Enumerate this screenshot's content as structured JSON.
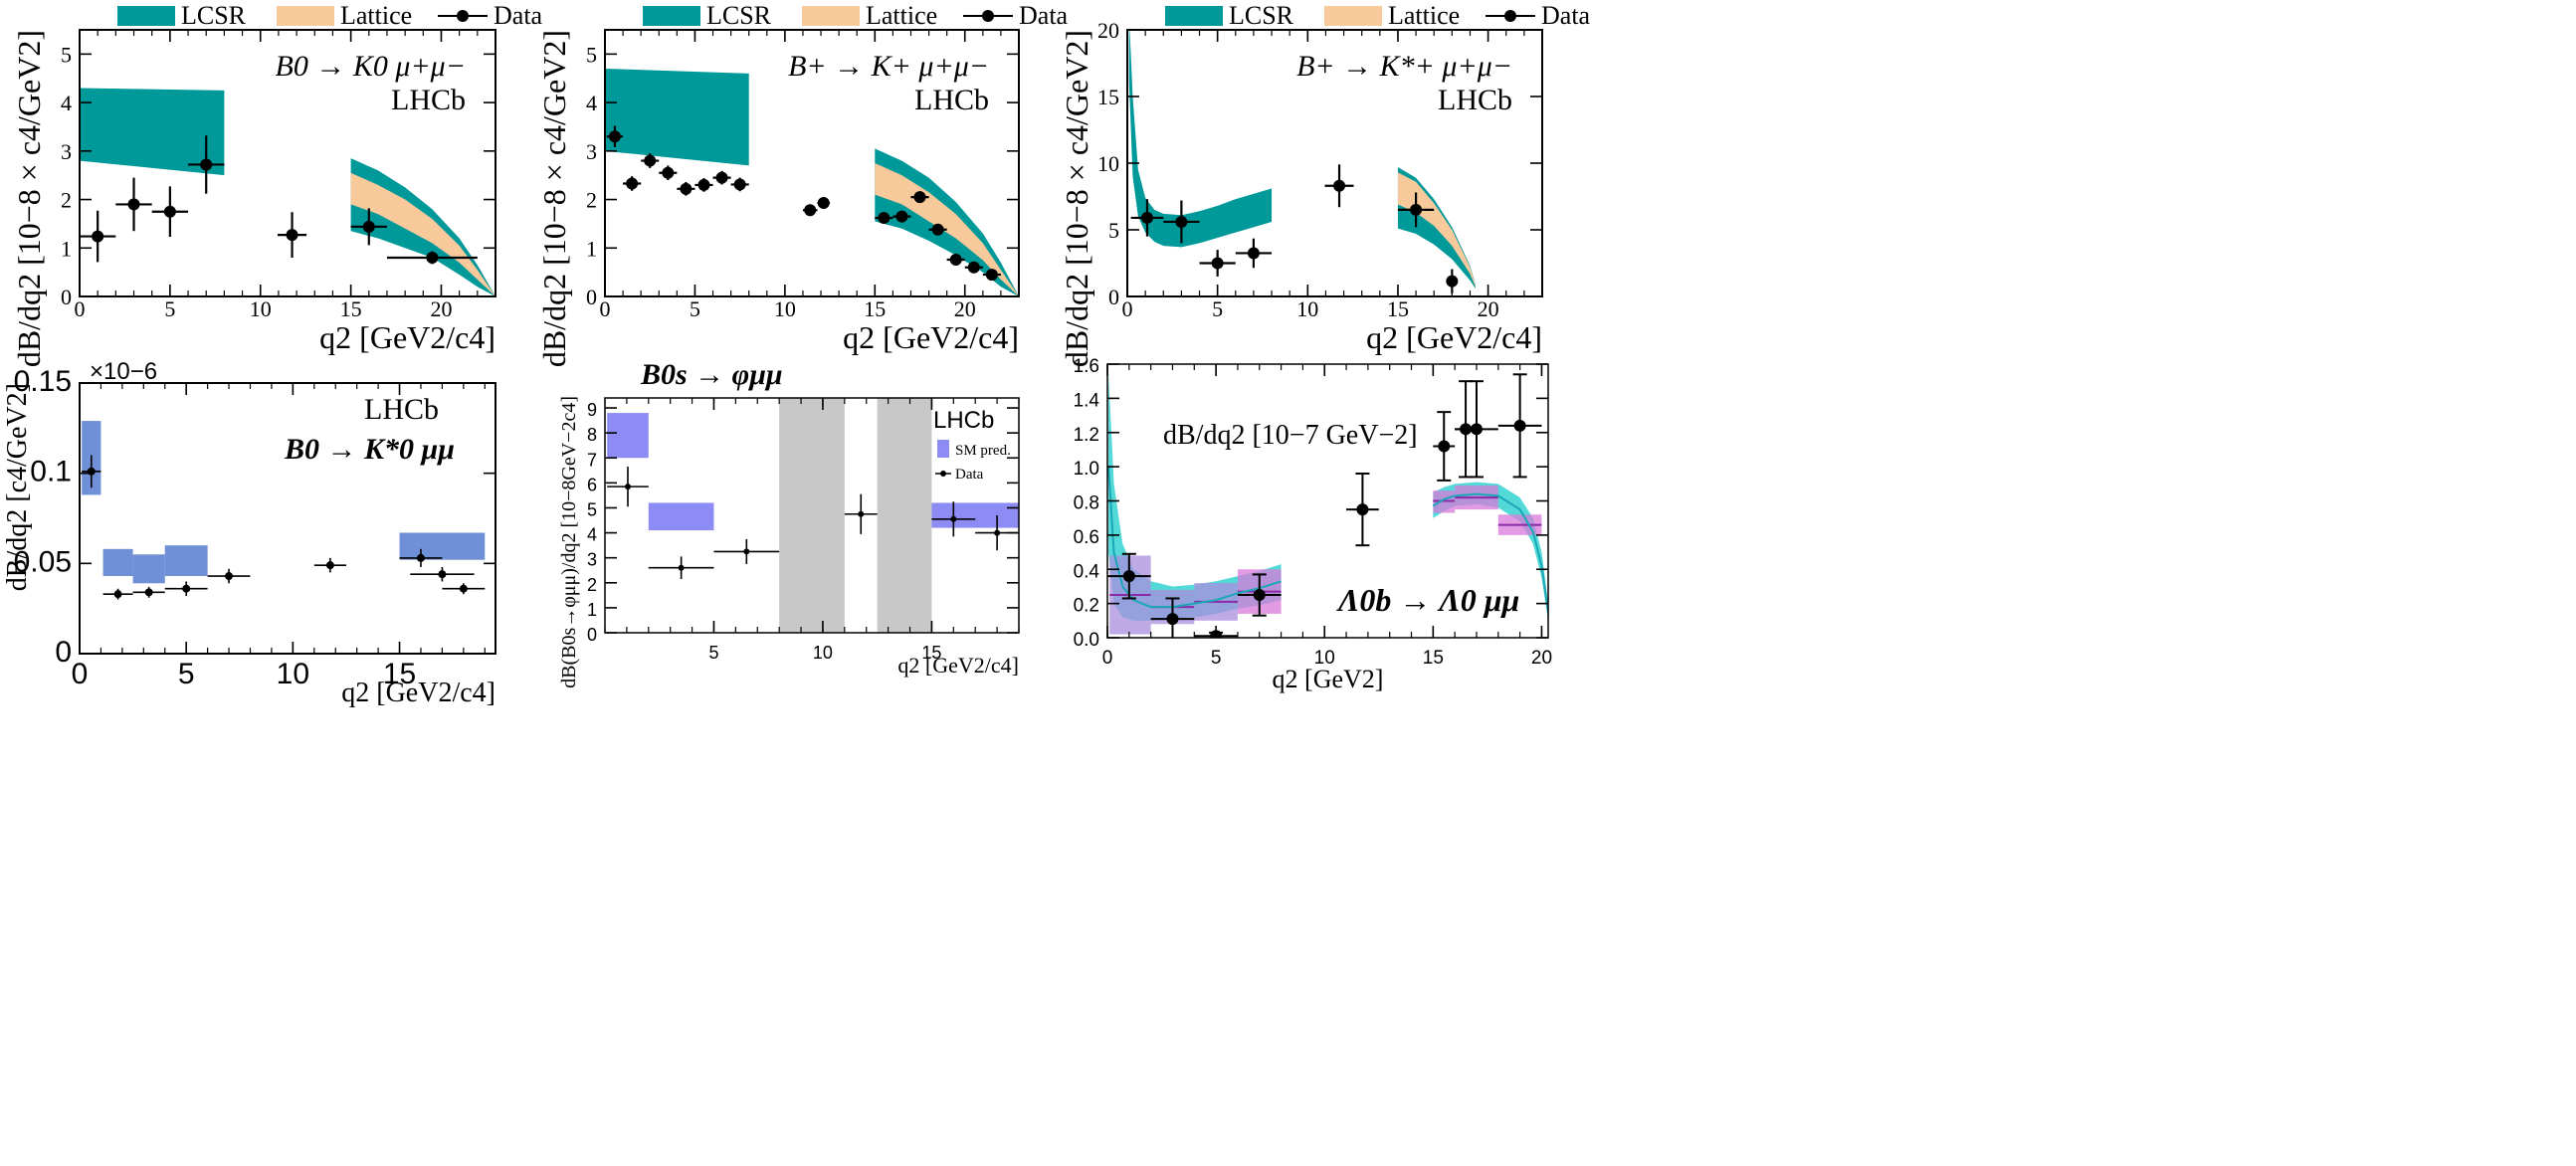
{
  "colors": {
    "lcsr": "#00999a",
    "lattice": "#f7c99b",
    "data": "#000000",
    "sm_pred_blue": "#6f8fd6",
    "sm_pred_violet": "#8c8cf4",
    "shade": "#c8c8c8",
    "lambda_cyan": "#54d9d9",
    "lambda_purple": "#a98ddc",
    "lambda_magenta": "#d87ad8",
    "lambda_line": "#8a2aa6"
  },
  "chart_data": [
    {
      "id": "p1",
      "type": "scatter",
      "legend": {
        "lcsr": "LCSR",
        "lattice": "Lattice",
        "data": "Data",
        "position": "top"
      },
      "title": "B0 → K0 μ+μ−",
      "experiment": "LHCb",
      "xlabel": "q2 [GeV2/c4]",
      "ylabel": "dB/dq2 [10−8 × c4/GeV2]",
      "xlim": [
        0,
        23
      ],
      "ylim": [
        0,
        5.5
      ],
      "xticks": [
        "0",
        "5",
        "10",
        "15",
        "20"
      ],
      "yticks": [
        "0",
        "1",
        "2",
        "3",
        "4",
        "5"
      ],
      "bands": {
        "lcsr": [
          {
            "x": [
              0,
              8
            ],
            "lo": [
              2.8,
              2.5
            ],
            "hi": [
              4.3,
              4.25
            ]
          },
          {
            "x": [
              15,
              16.5,
              18,
              19.5,
              21,
              22,
              23
            ],
            "lo": [
              1.35,
              1.2,
              1.0,
              0.8,
              0.45,
              0.2,
              0.0
            ],
            "hi": [
              2.85,
              2.6,
              2.25,
              1.8,
              1.2,
              0.65,
              0.0
            ]
          }
        ],
        "lattice": [
          {
            "x": [
              15,
              16.5,
              18,
              19.5,
              21,
              22,
              23
            ],
            "lo": [
              1.9,
              1.7,
              1.4,
              1.1,
              0.7,
              0.35,
              0.0
            ],
            "hi": [
              2.55,
              2.3,
              2.0,
              1.6,
              1.05,
              0.55,
              0.0
            ]
          }
        ]
      },
      "points": [
        {
          "x": 1.0,
          "y": 1.24,
          "xerr": 1.0,
          "yerr": 0.53
        },
        {
          "x": 3.0,
          "y": 1.9,
          "xerr": 1.0,
          "yerr": 0.55
        },
        {
          "x": 5.0,
          "y": 1.75,
          "xerr": 1.0,
          "yerr": 0.52
        },
        {
          "x": 7.0,
          "y": 2.72,
          "xerr": 1.0,
          "yerr": 0.6
        },
        {
          "x": 11.75,
          "y": 1.27,
          "xerr": 0.8,
          "yerr": 0.47
        },
        {
          "x": 16.0,
          "y": 1.44,
          "xerr": 1.0,
          "yerr": 0.38
        },
        {
          "x": 19.5,
          "y": 0.8,
          "xerr": 2.5,
          "yerr": 0.13
        }
      ]
    },
    {
      "id": "p2",
      "type": "scatter",
      "legend": {
        "lcsr": "LCSR",
        "lattice": "Lattice",
        "data": "Data",
        "position": "top"
      },
      "title": "B+ → K+ μ+μ−",
      "experiment": "LHCb",
      "xlabel": "q2 [GeV2/c4]",
      "ylabel": "dB/dq2 [10−8 × c4/GeV2]",
      "xlim": [
        0,
        23
      ],
      "ylim": [
        0,
        5.5
      ],
      "xticks": [
        "0",
        "5",
        "10",
        "15",
        "20"
      ],
      "yticks": [
        "0",
        "1",
        "2",
        "3",
        "4",
        "5"
      ],
      "bands": {
        "lcsr": [
          {
            "x": [
              0,
              8
            ],
            "lo": [
              3.0,
              2.7
            ],
            "hi": [
              4.7,
              4.6
            ]
          },
          {
            "x": [
              15,
              16.5,
              18,
              19.5,
              21,
              22,
              23
            ],
            "lo": [
              1.55,
              1.4,
              1.15,
              0.85,
              0.5,
              0.2,
              0.0
            ],
            "hi": [
              3.05,
              2.8,
              2.45,
              1.95,
              1.3,
              0.7,
              0.0
            ]
          }
        ],
        "lattice": [
          {
            "x": [
              15,
              16.5,
              18,
              19.5,
              21,
              22,
              23
            ],
            "lo": [
              2.1,
              1.9,
              1.55,
              1.2,
              0.75,
              0.35,
              0.0
            ],
            "hi": [
              2.75,
              2.5,
              2.15,
              1.7,
              1.1,
              0.55,
              0.0
            ]
          }
        ]
      },
      "points": [
        {
          "x": 0.55,
          "y": 3.3,
          "xerr": 0.45,
          "yerr": 0.22
        },
        {
          "x": 1.5,
          "y": 2.33,
          "xerr": 0.5,
          "yerr": 0.15
        },
        {
          "x": 2.5,
          "y": 2.8,
          "xerr": 0.5,
          "yerr": 0.15
        },
        {
          "x": 3.5,
          "y": 2.55,
          "xerr": 0.5,
          "yerr": 0.15
        },
        {
          "x": 4.5,
          "y": 2.22,
          "xerr": 0.5,
          "yerr": 0.14
        },
        {
          "x": 5.5,
          "y": 2.3,
          "xerr": 0.5,
          "yerr": 0.14
        },
        {
          "x": 6.5,
          "y": 2.45,
          "xerr": 0.5,
          "yerr": 0.14
        },
        {
          "x": 7.5,
          "y": 2.31,
          "xerr": 0.5,
          "yerr": 0.14
        },
        {
          "x": 11.4,
          "y": 1.78,
          "xerr": 0.4,
          "yerr": 0.12
        },
        {
          "x": 12.15,
          "y": 1.93,
          "xerr": 0.35,
          "yerr": 0.12
        },
        {
          "x": 15.5,
          "y": 1.62,
          "xerr": 0.5,
          "yerr": 0.1
        },
        {
          "x": 16.5,
          "y": 1.65,
          "xerr": 0.5,
          "yerr": 0.1
        },
        {
          "x": 17.5,
          "y": 2.05,
          "xerr": 0.5,
          "yerr": 0.12
        },
        {
          "x": 18.5,
          "y": 1.38,
          "xerr": 0.5,
          "yerr": 0.09
        },
        {
          "x": 19.5,
          "y": 0.76,
          "xerr": 0.5,
          "yerr": 0.06
        },
        {
          "x": 20.5,
          "y": 0.6,
          "xerr": 0.5,
          "yerr": 0.05
        },
        {
          "x": 21.5,
          "y": 0.45,
          "xerr": 0.5,
          "yerr": 0.04
        }
      ]
    },
    {
      "id": "p3",
      "type": "scatter",
      "legend": {
        "lcsr": "LCSR",
        "lattice": "Lattice",
        "data": "Data",
        "position": "top"
      },
      "title": "B+ → K*+ μ+μ−",
      "experiment": "LHCb",
      "xlabel": "q2 [GeV2/c4]",
      "ylabel": "dB/dq2 [10−8 × c4/GeV2]",
      "xlim": [
        0,
        23
      ],
      "ylim": [
        0,
        20
      ],
      "xticks": [
        "0",
        "5",
        "10",
        "15",
        "20"
      ],
      "yticks": [
        "0",
        "5",
        "10",
        "15",
        "20"
      ],
      "bands": {
        "lcsr": [
          {
            "x": [
              0.1,
              0.3,
              0.6,
              1.0,
              1.5,
              2.0,
              3.0,
              4.0,
              5.0,
              6.0,
              7.0,
              8.0
            ],
            "lo": [
              16.0,
              9.0,
              6.0,
              4.8,
              4.1,
              3.8,
              3.7,
              4.0,
              4.4,
              4.8,
              5.2,
              5.6
            ],
            "hi": [
              21.0,
              15.0,
              9.5,
              7.4,
              6.5,
              6.2,
              6.1,
              6.4,
              6.8,
              7.3,
              7.7,
              8.1
            ]
          },
          {
            "x": [
              15,
              16,
              17,
              18,
              19,
              19.3
            ],
            "lo": [
              5.1,
              4.7,
              3.9,
              2.8,
              1.2,
              0.6
            ],
            "hi": [
              9.7,
              8.9,
              7.3,
              5.2,
              2.3,
              0.9
            ]
          }
        ],
        "lattice": [
          {
            "x": [
              15,
              16,
              17,
              18,
              19,
              19.3
            ],
            "lo": [
              6.9,
              6.3,
              5.3,
              3.8,
              1.7,
              0.7
            ],
            "hi": [
              9.3,
              8.6,
              7.0,
              5.0,
              2.2,
              0.85
            ]
          }
        ]
      },
      "points": [
        {
          "x": 1.1,
          "y": 5.9,
          "xerr": 0.9,
          "yerr": 1.4
        },
        {
          "x": 3.0,
          "y": 5.6,
          "xerr": 1.0,
          "yerr": 1.6
        },
        {
          "x": 5.0,
          "y": 2.5,
          "xerr": 1.0,
          "yerr": 1.0
        },
        {
          "x": 7.0,
          "y": 3.25,
          "xerr": 1.0,
          "yerr": 1.1
        },
        {
          "x": 11.75,
          "y": 8.3,
          "xerr": 0.8,
          "yerr": 1.6
        },
        {
          "x": 16.0,
          "y": 6.5,
          "xerr": 1.0,
          "yerr": 1.3
        },
        {
          "x": 18.0,
          "y": 1.15,
          "xerr": 0.0,
          "yerr": 0.9
        }
      ]
    },
    {
      "id": "p4",
      "type": "scatter",
      "title": "B0 → K*0 μμ",
      "experiment": "LHCb",
      "offset_label": "×10−6",
      "xlabel": "q2 [GeV2/c4]",
      "ylabel": "dB/dq2 [c4/GeV2]",
      "xlim": [
        0,
        19.5
      ],
      "ylim": [
        0,
        0.15
      ],
      "xticks": [
        "0",
        "5",
        "10",
        "15"
      ],
      "yticks": [
        "0",
        "0.05",
        "0.1",
        "0.15"
      ],
      "boxes": [
        {
          "x0": 0.1,
          "x1": 1.0,
          "y0": 0.088,
          "y1": 0.129
        },
        {
          "x0": 1.1,
          "x1": 2.5,
          "y0": 0.043,
          "y1": 0.058
        },
        {
          "x0": 2.5,
          "x1": 4.0,
          "y0": 0.039,
          "y1": 0.055
        },
        {
          "x0": 4.0,
          "x1": 6.0,
          "y0": 0.043,
          "y1": 0.06
        },
        {
          "x0": 15.0,
          "x1": 19.0,
          "y0": 0.052,
          "y1": 0.067
        }
      ],
      "points": [
        {
          "x": 0.55,
          "y": 0.101,
          "xerr": 0.45,
          "yerr": 0.009
        },
        {
          "x": 1.8,
          "y": 0.033,
          "xerr": 0.7,
          "yerr": 0.003
        },
        {
          "x": 3.25,
          "y": 0.034,
          "xerr": 0.75,
          "yerr": 0.003
        },
        {
          "x": 5.0,
          "y": 0.036,
          "xerr": 1.0,
          "yerr": 0.004
        },
        {
          "x": 7.0,
          "y": 0.043,
          "xerr": 1.0,
          "yerr": 0.004
        },
        {
          "x": 11.75,
          "y": 0.049,
          "xerr": 0.75,
          "yerr": 0.004
        },
        {
          "x": 16.0,
          "y": 0.053,
          "xerr": 1.0,
          "yerr": 0.005
        },
        {
          "x": 17.0,
          "y": 0.044,
          "xerr": 1.5,
          "yerr": 0.004
        },
        {
          "x": 18.0,
          "y": 0.036,
          "xerr": 1.0,
          "yerr": 0.003
        }
      ]
    },
    {
      "id": "p5",
      "type": "scatter",
      "title": "B0s → φμμ",
      "experiment": "LHCb",
      "legend": {
        "sm": "SM pred.",
        "data": "Data",
        "position": "right"
      },
      "xlabel": "q2 [GeV2/c4]",
      "ylabel": "dB(B0s→φμμ)/dq2 [10−8GeV−2c4]",
      "xlim": [
        0,
        19
      ],
      "ylim": [
        0,
        9.4
      ],
      "xticks": [
        "5",
        "10",
        "15"
      ],
      "yticks": [
        "0",
        "1",
        "2",
        "3",
        "4",
        "5",
        "6",
        "7",
        "8",
        "9"
      ],
      "shaded": [
        {
          "x0": 8.0,
          "x1": 11.0
        },
        {
          "x0": 12.5,
          "x1": 15.0
        }
      ],
      "boxes": [
        {
          "x0": 0.1,
          "x1": 2.0,
          "y0": 7.0,
          "y1": 8.8
        },
        {
          "x0": 2.0,
          "x1": 5.0,
          "y0": 4.1,
          "y1": 5.2
        },
        {
          "x0": 15.0,
          "x1": 19.0,
          "y0": 4.2,
          "y1": 5.2
        }
      ],
      "points": [
        {
          "x": 1.05,
          "y": 5.85,
          "xerr": 0.95,
          "yerr": 0.8
        },
        {
          "x": 3.5,
          "y": 2.6,
          "xerr": 1.5,
          "yerr": 0.45
        },
        {
          "x": 6.5,
          "y": 3.25,
          "xerr": 1.5,
          "yerr": 0.5
        },
        {
          "x": 11.75,
          "y": 4.75,
          "xerr": 0.75,
          "yerr": 0.8
        },
        {
          "x": 16.0,
          "y": 4.55,
          "xerr": 1.0,
          "yerr": 0.7
        },
        {
          "x": 18.0,
          "y": 4.0,
          "xerr": 1.0,
          "yerr": 0.7
        }
      ]
    },
    {
      "id": "p6",
      "type": "scatter",
      "title": "Λ0b → Λ0 μμ",
      "annotation": "dB/dq2 [10−7 GeV−2]",
      "xlabel": "q2 [GeV2]",
      "xlim": [
        0,
        20.3
      ],
      "ylim": [
        0,
        1.6
      ],
      "xticks": [
        "0",
        "5",
        "10",
        "15",
        "20"
      ],
      "yticks": [
        "0.0",
        "0.2",
        "0.4",
        "0.6",
        "0.8",
        "1.0",
        "1.2",
        "1.4",
        "1.6"
      ],
      "band": {
        "x": [
          0.05,
          0.3,
          0.7,
          1.2,
          2.0,
          3.0,
          4.0,
          5.0,
          6.0,
          7.0,
          8.0
        ],
        "lo": [
          0.5,
          0.2,
          0.12,
          0.1,
          0.1,
          0.11,
          0.12,
          0.14,
          0.17,
          0.19,
          0.22
        ],
        "hi": [
          1.55,
          0.9,
          0.55,
          0.4,
          0.33,
          0.3,
          0.31,
          0.33,
          0.36,
          0.39,
          0.43
        ],
        "mid": [
          1.0,
          0.5,
          0.3,
          0.22,
          0.18,
          0.18,
          0.2,
          0.22,
          0.26,
          0.29,
          0.33
        ]
      },
      "band_high": {
        "x": [
          15.0,
          15.5,
          16.0,
          17.0,
          18.0,
          19.0,
          19.6,
          20.0,
          20.3
        ],
        "lo": [
          0.7,
          0.74,
          0.77,
          0.78,
          0.76,
          0.68,
          0.55,
          0.35,
          0.1
        ],
        "hi": [
          0.85,
          0.88,
          0.9,
          0.91,
          0.9,
          0.82,
          0.7,
          0.5,
          0.2
        ],
        "mid": [
          0.77,
          0.81,
          0.83,
          0.84,
          0.83,
          0.75,
          0.62,
          0.42,
          0.15
        ]
      },
      "bins": [
        {
          "x0": 0.1,
          "x1": 2.0,
          "y0": 0.02,
          "y1": 0.48,
          "mid": 0.25
        },
        {
          "x0": 2.0,
          "x1": 4.0,
          "y0": 0.08,
          "y1": 0.28,
          "mid": 0.18
        },
        {
          "x0": 4.0,
          "x1": 6.0,
          "y0": 0.1,
          "y1": 0.32,
          "mid": 0.21
        },
        {
          "x0": 6.0,
          "x1": 8.0,
          "y0": 0.14,
          "y1": 0.4,
          "mid": 0.27
        },
        {
          "x0": 15.0,
          "x1": 16.0,
          "y0": 0.73,
          "y1": 0.86,
          "mid": 0.8
        },
        {
          "x0": 16.0,
          "x1": 18.0,
          "y0": 0.75,
          "y1": 0.89,
          "mid": 0.82
        },
        {
          "x0": 18.0,
          "x1": 20.0,
          "y0": 0.6,
          "y1": 0.72,
          "mid": 0.66
        }
      ],
      "points": [
        {
          "x": 1.0,
          "y": 0.36,
          "xerr": 1.0,
          "yerr": 0.13
        },
        {
          "x": 3.0,
          "y": 0.11,
          "xerr": 1.0,
          "yerr": 0.12
        },
        {
          "x": 5.0,
          "y": 0.01,
          "xerr": 1.0,
          "yerr": 0.02
        },
        {
          "x": 7.0,
          "y": 0.25,
          "xerr": 1.0,
          "yerr": 0.12
        },
        {
          "x": 11.75,
          "y": 0.75,
          "xerr": 0.75,
          "yerr": 0.21
        },
        {
          "x": 15.5,
          "y": 1.12,
          "xerr": 0.5,
          "yerr": 0.2
        },
        {
          "x": 16.5,
          "y": 1.22,
          "xerr": 0.5,
          "yerr": 0.28
        },
        {
          "x": 17.0,
          "y": 1.22,
          "xerr": 1.0,
          "yerr": 0.28
        },
        {
          "x": 19.0,
          "y": 1.24,
          "xerr": 1.0,
          "yerr": 0.3
        }
      ]
    }
  ]
}
